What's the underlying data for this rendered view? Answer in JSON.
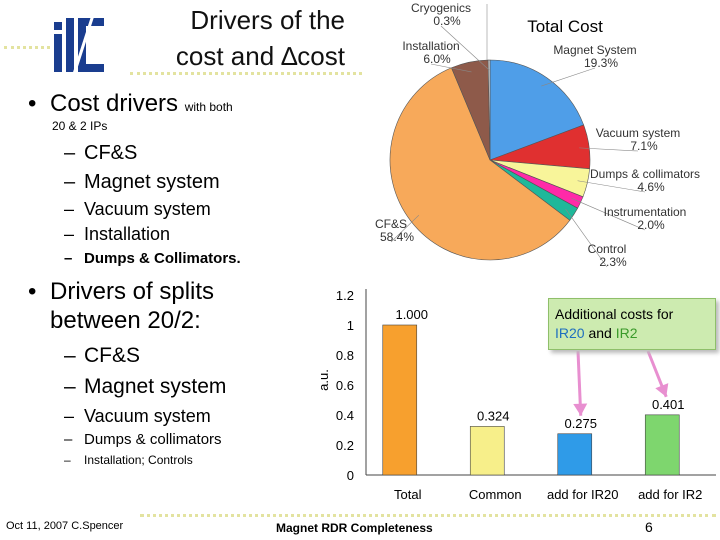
{
  "slide": {
    "title_line1": "Drivers of the",
    "title_line2": "cost and ∆cost",
    "bullet1": {
      "main": "Cost drivers",
      "small_suffix": "with both",
      "small_line2": "20 & 2 IPs",
      "items": [
        "CF&S",
        "Magnet system",
        "Vacuum system",
        "Installation",
        "Dumps & Collimators."
      ]
    },
    "bullet2": {
      "line1": "Drivers of splits",
      "line2": "between 20/2:",
      "items": [
        "CF&S",
        "Magnet system",
        "Vacuum system",
        "Dumps & collimators",
        "Installation; Controls"
      ]
    },
    "bullet_char": "•",
    "dash_char": "–",
    "footer": {
      "left": "Oct 11, 2007 C.Spencer",
      "middle": "Magnet RDR Completeness",
      "page_number": "6"
    },
    "callout": {
      "prefix": "Additional costs for",
      "ir20": "IR20",
      "conj": "and",
      "ir2": "IR2"
    },
    "colors": {
      "callout_bg": "#cdebb0",
      "ir20_text": "#1f6fbf",
      "ir2_text": "#3a9a2a",
      "arrow": "#e88fd0"
    }
  },
  "chart_data": [
    {
      "type": "pie",
      "title": "Total Cost",
      "slices": [
        {
          "name": "Magnet System",
          "value": 19.3,
          "label": "19.3%",
          "color": "#4f9ee8"
        },
        {
          "name": "Vacuum system",
          "value": 7.1,
          "label": "7.1%",
          "color": "#e03030"
        },
        {
          "name": "Dumps & collimators",
          "value": 4.6,
          "label": "4.6%",
          "color": "#f8f59a"
        },
        {
          "name": "Instrumentation",
          "value": 2.0,
          "label": "2.0%",
          "color": "#ff2aa8"
        },
        {
          "name": "Control",
          "value": 2.3,
          "label": "2.3%",
          "color": "#1fb89a"
        },
        {
          "name": "CF&S",
          "value": 58.4,
          "label": "58.4%",
          "color": "#f7a95a"
        },
        {
          "name": "Installation",
          "value": 6.0,
          "label": "6.0%",
          "color": "#8e5a4a"
        },
        {
          "name": "Cryogenics",
          "value": 0.3,
          "label": "0.3%",
          "color": "#d8d8d8"
        }
      ]
    },
    {
      "type": "bar",
      "categories": [
        "Total",
        "Common",
        "add for IR20",
        "add for IR2"
      ],
      "values": [
        1.0,
        0.324,
        0.275,
        0.401
      ],
      "value_labels": [
        "1.000",
        "0.324",
        "0.275",
        "0.401"
      ],
      "colors": [
        "#f7a02e",
        "#f7ef8a",
        "#2f9be8",
        "#7ed66e"
      ],
      "ylabel": "a.u.",
      "ylim": [
        0,
        1.2
      ],
      "yticks": [
        "0",
        "0.2",
        "0.4",
        "0.6",
        "0.8",
        "1",
        "1.2"
      ],
      "grid": false
    }
  ]
}
